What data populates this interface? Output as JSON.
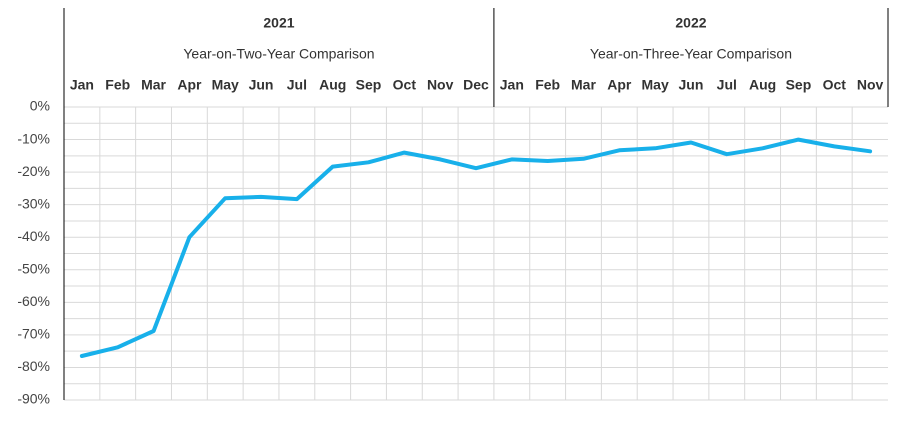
{
  "chart_data": {
    "type": "line",
    "title": "",
    "xlabel": "",
    "ylabel": "",
    "ylim": [
      -90,
      0
    ],
    "ytick_labels": [
      "0%",
      "-10%",
      "-20%",
      "-30%",
      "-40%",
      "-50%",
      "-60%",
      "-70%",
      "-80%",
      "-90%"
    ],
    "yticks": [
      0,
      -10,
      -20,
      -30,
      -40,
      -50,
      -60,
      -70,
      -80,
      -90
    ],
    "grid": true,
    "line_color": "#18B0EA",
    "grid_color": "#D9D9D9",
    "header_groups": [
      {
        "year": "2021",
        "subtitle": "Year-on-Two-Year Comparison",
        "months": [
          "Jan",
          "Feb",
          "Mar",
          "Apr",
          "May",
          "Jun",
          "Jul",
          "Aug",
          "Sep",
          "Oct",
          "Nov",
          "Dec"
        ]
      },
      {
        "year": "2022",
        "subtitle": "Year-on-Three-Year Comparison",
        "months": [
          "Jan",
          "Feb",
          "Mar",
          "Apr",
          "May",
          "Jun",
          "Jul",
          "Aug",
          "Sep",
          "Oct",
          "Nov"
        ]
      }
    ],
    "categories": [
      "Jan 2021",
      "Feb 2021",
      "Mar 2021",
      "Apr 2021",
      "May 2021",
      "Jun 2021",
      "Jul 2021",
      "Aug 2021",
      "Sep 2021",
      "Oct 2021",
      "Nov 2021",
      "Dec 2021",
      "Jan 2022",
      "Feb 2022",
      "Mar 2022",
      "Apr 2022",
      "May 2022",
      "Jun 2022",
      "Jul 2022",
      "Aug 2022",
      "Sep 2022",
      "Oct 2022",
      "Nov 2022"
    ],
    "series": [
      {
        "values": [
          -76.5,
          -73.8,
          -68.8,
          -40.0,
          -28.0,
          -27.6,
          -28.3,
          -18.3,
          -17.0,
          -14.0,
          -16.1,
          -18.8,
          -16.1,
          -16.6,
          -15.9,
          -13.3,
          -12.7,
          -10.9,
          -14.5,
          -12.7,
          -10.0,
          -12.1,
          -13.6
        ]
      }
    ]
  }
}
